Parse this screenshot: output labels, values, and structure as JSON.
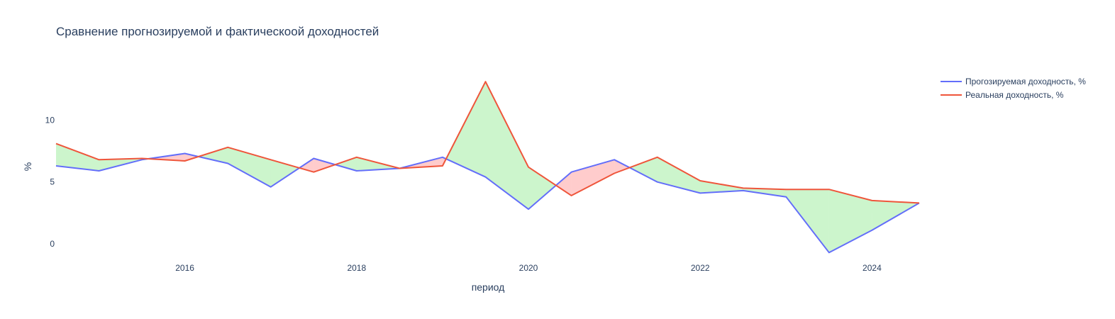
{
  "chart_data": {
    "type": "line",
    "title": "Сравнение прогнозируемой и фактическоой доходностей",
    "xlabel": "период",
    "ylabel": "%",
    "xlim": [
      2014.5,
      2024.55
    ],
    "ylim": [
      -1.2,
      14.2
    ],
    "x_ticks": [
      2016,
      2018,
      2020,
      2022,
      2024
    ],
    "x_tick_labels": [
      "2016",
      "2018",
      "2020",
      "2022",
      "2024"
    ],
    "y_ticks": [
      0,
      5,
      10
    ],
    "y_tick_labels": [
      "0",
      "5",
      "10"
    ],
    "x": [
      2014.5,
      2015.0,
      2015.5,
      2016.0,
      2016.5,
      2017.0,
      2017.5,
      2018.0,
      2018.5,
      2019.0,
      2019.5,
      2020.0,
      2020.5,
      2021.0,
      2021.5,
      2022.0,
      2022.5,
      2023.0,
      2023.5,
      2024.0,
      2024.55
    ],
    "series": [
      {
        "name": "Прогозируемая доходность, %",
        "color": "#636efa",
        "values": [
          6.3,
          5.9,
          6.8,
          7.3,
          6.5,
          4.6,
          6.9,
          5.9,
          6.1,
          7.0,
          5.4,
          2.8,
          5.8,
          6.8,
          5.0,
          4.1,
          4.3,
          3.8,
          -0.7,
          1.1,
          3.3
        ]
      },
      {
        "name": "Реальная доходность, %",
        "color": "#ef553b",
        "values": [
          8.1,
          6.8,
          6.9,
          6.7,
          7.8,
          6.8,
          5.8,
          7.0,
          6.1,
          6.3,
          13.1,
          6.2,
          3.9,
          5.7,
          7.0,
          5.1,
          4.5,
          4.4,
          4.4,
          3.5,
          3.3
        ]
      }
    ],
    "fill_between": {
      "positive_color": "rgba(0,204,0,0.2)",
      "negative_color": "rgba(255,0,0,0.2)"
    },
    "legend_position": "top-right",
    "grid": false
  }
}
